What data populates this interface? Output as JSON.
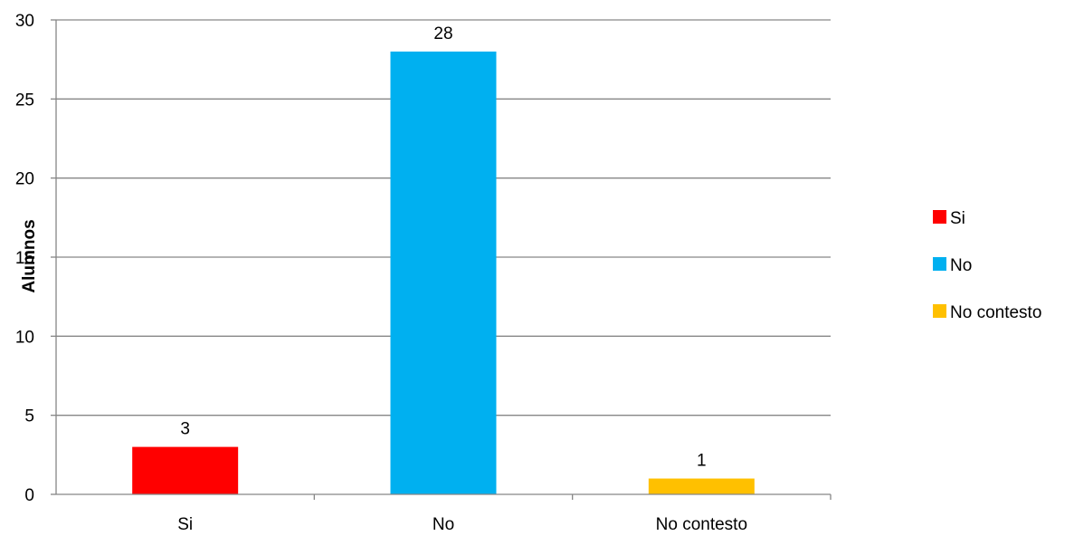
{
  "chart_data": {
    "type": "bar",
    "categories": [
      "Si",
      "No",
      "No contesto"
    ],
    "values": [
      3,
      28,
      1
    ],
    "data_labels": [
      "3",
      "28",
      "1"
    ],
    "colors": [
      "#ff0000",
      "#00b0f0",
      "#ffc000"
    ],
    "ylabel": "Alumnos",
    "ylim": [
      0,
      30
    ],
    "yticks": [
      0,
      5,
      10,
      15,
      20,
      25,
      30
    ],
    "grid": true,
    "legend": {
      "position": "right",
      "entries": [
        "Si",
        "No",
        "No contesto"
      ]
    }
  }
}
